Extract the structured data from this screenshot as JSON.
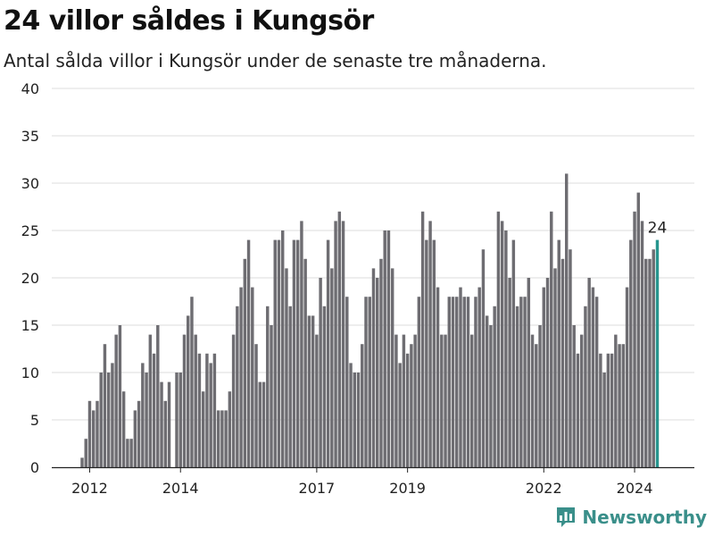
{
  "header": {
    "title": "24 villor såldes i Kungsör",
    "subtitle": "Antal sålda villor i Kungsör under de senaste tre månaderna."
  },
  "brand": {
    "name": "Newsworthy"
  },
  "colors": {
    "bar": "#6e6d72",
    "highlight": "#27958e",
    "grid": "#dcdcdc",
    "axis": "#222222"
  },
  "chart_data": {
    "type": "bar",
    "title": "24 villor såldes i Kungsör",
    "subtitle": "Antal sålda villor i Kungsör under de senaste tre månaderna.",
    "xlabel": "",
    "ylabel": "",
    "ylim": [
      0,
      40
    ],
    "yticks": [
      0,
      5,
      10,
      15,
      20,
      25,
      30,
      35,
      40
    ],
    "xtick_labels": [
      {
        "label": "2012",
        "year": 2012.0
      },
      {
        "label": "2014",
        "year": 2014.0
      },
      {
        "label": "2017",
        "year": 2017.0
      },
      {
        "label": "2019",
        "year": 2019.0
      },
      {
        "label": "2022",
        "year": 2022.0
      },
      {
        "label": "2024",
        "year": 2024.0
      }
    ],
    "first_period": "2011-11",
    "values": [
      1,
      3,
      7,
      6,
      7,
      10,
      13,
      10,
      11,
      14,
      15,
      8,
      3,
      3,
      6,
      7,
      11,
      10,
      14,
      12,
      15,
      9,
      7,
      9,
      0,
      10,
      10,
      14,
      16,
      18,
      14,
      12,
      8,
      12,
      11,
      12,
      6,
      6,
      6,
      8,
      14,
      17,
      19,
      22,
      24,
      19,
      13,
      9,
      9,
      17,
      15,
      24,
      24,
      25,
      21,
      17,
      24,
      24,
      26,
      22,
      16,
      16,
      14,
      20,
      17,
      24,
      21,
      26,
      27,
      26,
      18,
      11,
      10,
      10,
      13,
      18,
      18,
      21,
      20,
      22,
      25,
      25,
      21,
      14,
      11,
      14,
      12,
      13,
      14,
      18,
      27,
      24,
      26,
      24,
      19,
      14,
      14,
      18,
      18,
      18,
      19,
      18,
      18,
      14,
      18,
      19,
      23,
      16,
      15,
      17,
      27,
      26,
      25,
      20,
      24,
      17,
      18,
      18,
      20,
      14,
      13,
      15,
      19,
      20,
      27,
      21,
      24,
      22,
      31,
      23,
      15,
      12,
      14,
      17,
      20,
      19,
      18,
      12,
      10,
      12,
      12,
      14,
      13,
      13,
      19,
      24,
      27,
      29,
      26,
      22,
      22,
      23,
      24
    ],
    "highlight": {
      "index": 152,
      "value": 24,
      "label": "24"
    }
  }
}
